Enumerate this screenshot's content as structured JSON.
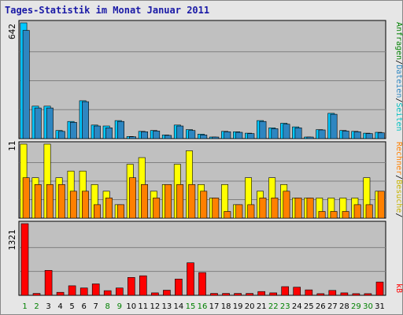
{
  "chart_data": {
    "type": "bar",
    "title": "Tages-Statistik im Monat Januar 2011",
    "categories": [
      "1",
      "2",
      "3",
      "4",
      "5",
      "6",
      "7",
      "8",
      "9",
      "10",
      "11",
      "12",
      "13",
      "14",
      "15",
      "16",
      "17",
      "18",
      "19",
      "20",
      "21",
      "22",
      "23",
      "24",
      "25",
      "26",
      "27",
      "28",
      "29",
      "30",
      "31"
    ],
    "weekend_days": [
      "1",
      "2",
      "8",
      "9",
      "15",
      "16",
      "22",
      "23",
      "29",
      "30"
    ],
    "colors": {
      "background": "#c0c0c0",
      "frame": "#e6e6e6",
      "anfragen": "#00c8ff",
      "dateien": "#2e86c1",
      "seiten": "#00e0e0",
      "besuche": "#ffff00",
      "rechner": "#ff8000",
      "kb": "#ff0000",
      "title": "#1a1aa6",
      "weekend_label": "#008000",
      "weekday_label": "#000000"
    },
    "panels": [
      {
        "id": "hits",
        "ymax_label": "642",
        "ylim": [
          0,
          642
        ],
        "series": [
          {
            "name": "Anfragen",
            "values": [
              642,
              180,
              180,
              45,
              95,
              210,
              75,
              70,
              100,
              12,
              40,
              45,
              20,
              75,
              50,
              25,
              5,
              40,
              38,
              30,
              100,
              60,
              85,
              65,
              5,
              50,
              140,
              45,
              40,
              30,
              35
            ]
          },
          {
            "name": "Dateien",
            "values": [
              600,
              170,
              170,
              40,
              90,
              205,
              70,
              60,
              95,
              10,
              38,
              42,
              18,
              70,
              45,
              20,
              4,
              38,
              35,
              28,
              95,
              55,
              80,
              60,
              4,
              48,
              135,
              42,
              38,
              28,
              32
            ]
          }
        ],
        "side_labels": [
          {
            "text": "Anfragen",
            "color": "#008000"
          },
          {
            "text": "/",
            "color": "#000000"
          },
          {
            "text": "Dateien",
            "color": "#2e86c1"
          },
          {
            "text": "/",
            "color": "#000000"
          },
          {
            "text": "Seiten",
            "color": "#00c0c0"
          }
        ]
      },
      {
        "id": "visits",
        "ymax_label": "11",
        "ylim": [
          0,
          11
        ],
        "series": [
          {
            "name": "Besuche",
            "values": [
              11,
              6,
              11,
              6,
              7,
              7,
              5,
              4,
              2,
              8,
              9,
              4,
              5,
              8,
              10,
              5,
              3,
              5,
              2,
              6,
              4,
              6,
              5,
              3,
              3,
              3,
              3,
              3,
              3,
              6,
              4
            ]
          },
          {
            "name": "Rechner",
            "values": [
              6,
              5,
              5,
              5,
              4,
              4,
              2,
              3,
              2,
              6,
              5,
              3,
              5,
              5,
              5,
              4,
              3,
              1,
              2,
              2,
              3,
              3,
              4,
              3,
              3,
              1,
              1,
              1,
              2,
              2,
              4
            ]
          }
        ],
        "side_labels": [
          {
            "text": "Rechner",
            "color": "#ff8000"
          },
          {
            "text": "/",
            "color": "#000000"
          },
          {
            "text": "Besuche",
            "color": "#c8b400"
          },
          {
            "text": "/",
            "color": "#000000"
          }
        ]
      },
      {
        "id": "kb",
        "ymax_label": "1321",
        "ylim": [
          0,
          1321
        ],
        "series": [
          {
            "name": "kB",
            "values": [
              1321,
              35,
              460,
              55,
              175,
              135,
              210,
              85,
              135,
              330,
              360,
              45,
              95,
              300,
              600,
              420,
              35,
              35,
              35,
              35,
              70,
              45,
              160,
              150,
              100,
              30,
              90,
              45,
              30,
              30,
              245
            ]
          }
        ],
        "side_labels": [
          {
            "text": "kB",
            "color": "#ff0000"
          }
        ]
      }
    ]
  }
}
